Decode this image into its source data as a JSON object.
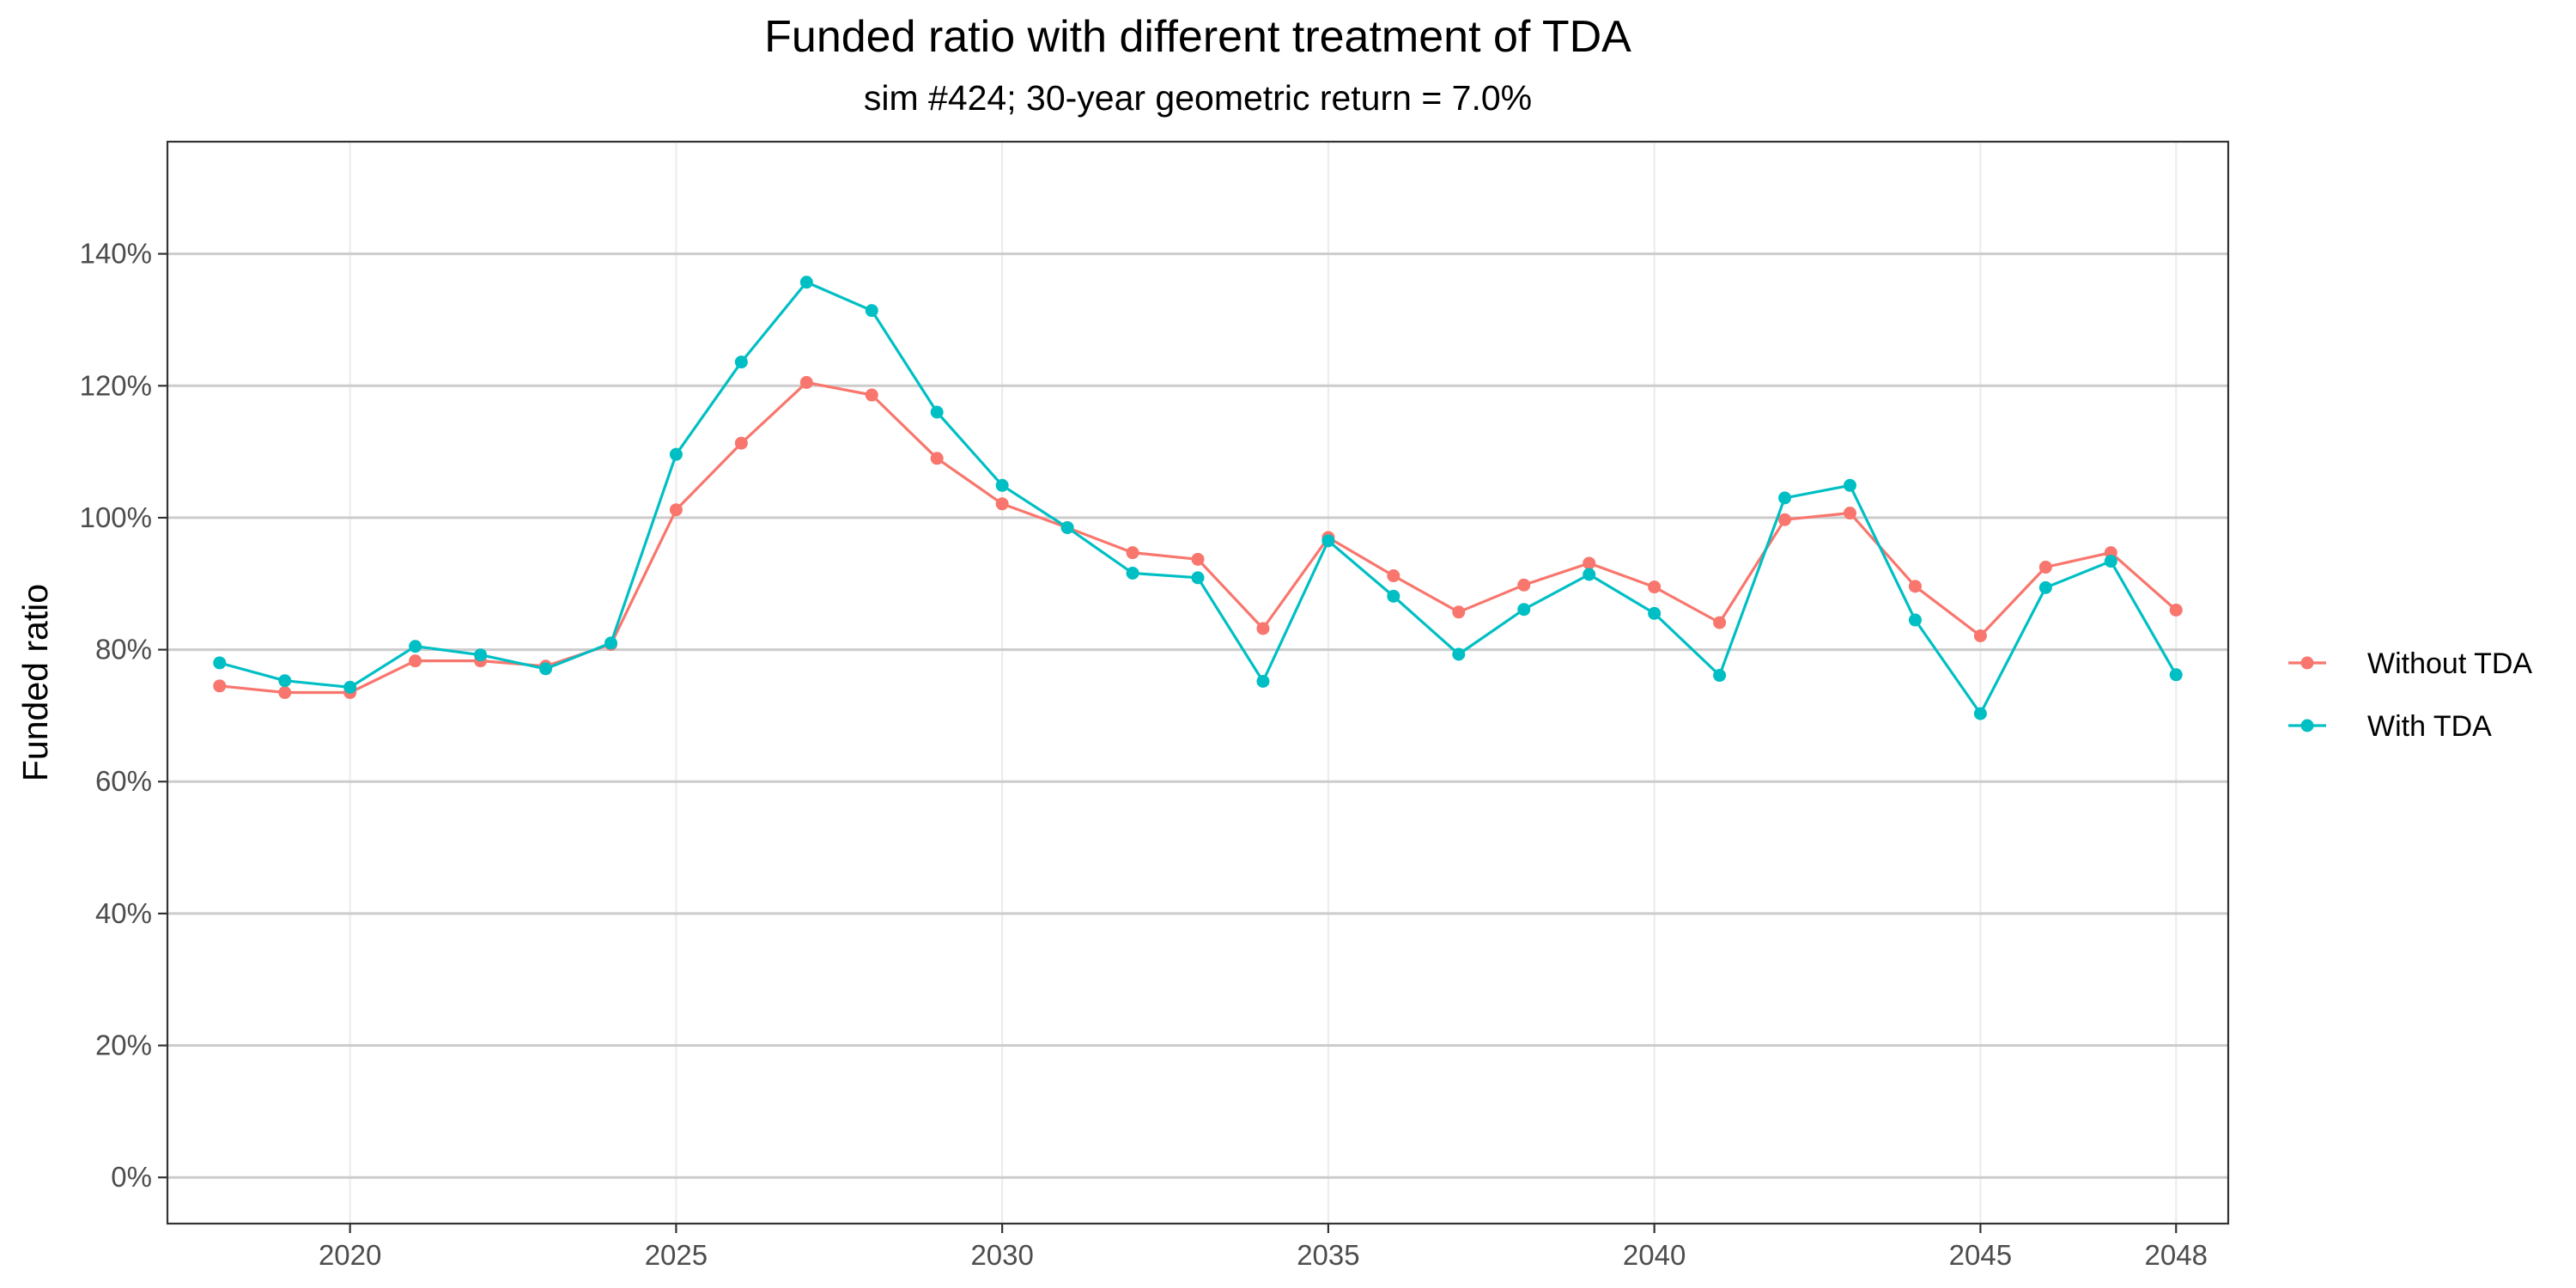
{
  "chart_data": {
    "type": "line",
    "title": "Funded ratio with different treatment of TDA",
    "subtitle": "sim #424; 30-year geometric return = 7.0%",
    "xlabel": "",
    "ylabel": "Funded ratio",
    "x": [
      2018,
      2019,
      2020,
      2021,
      2022,
      2023,
      2024,
      2025,
      2026,
      2027,
      2028,
      2029,
      2030,
      2031,
      2032,
      2033,
      2034,
      2035,
      2036,
      2037,
      2038,
      2039,
      2040,
      2041,
      2042,
      2043,
      2044,
      2045,
      2046,
      2047,
      2048
    ],
    "xlim": [
      2017.2,
      2048.8
    ],
    "ylim": [
      -0.07,
      1.57
    ],
    "x_ticks": [
      {
        "value": 2020,
        "label": "2020"
      },
      {
        "value": 2025,
        "label": "2025"
      },
      {
        "value": 2030,
        "label": "2030"
      },
      {
        "value": 2035,
        "label": "2035"
      },
      {
        "value": 2040,
        "label": "2040"
      },
      {
        "value": 2045,
        "label": "2045"
      },
      {
        "value": 2048,
        "label": "2048"
      }
    ],
    "y_ticks": [
      {
        "value": 0.0,
        "label": "0%"
      },
      {
        "value": 0.2,
        "label": "20%"
      },
      {
        "value": 0.4,
        "label": "40%"
      },
      {
        "value": 0.6,
        "label": "60%"
      },
      {
        "value": 0.8,
        "label": "80%"
      },
      {
        "value": 1.0,
        "label": "100%"
      },
      {
        "value": 1.2,
        "label": "120%"
      },
      {
        "value": 1.4,
        "label": "140%"
      }
    ],
    "grid": true,
    "legend_position": "right",
    "series": [
      {
        "name": "Without TDA",
        "color": "#F8766D",
        "values": [
          0.745,
          0.735,
          0.735,
          0.783,
          0.783,
          0.775,
          0.808,
          1.012,
          1.113,
          1.205,
          1.186,
          1.09,
          1.021,
          0.985,
          0.947,
          0.937,
          0.832,
          0.97,
          0.912,
          0.857,
          0.898,
          0.931,
          0.895,
          0.841,
          0.997,
          1.007,
          0.896,
          0.821,
          0.925,
          0.947,
          0.86
        ]
      },
      {
        "name": "With TDA",
        "color": "#00BFC4",
        "values": [
          0.78,
          0.753,
          0.743,
          0.805,
          0.792,
          0.771,
          0.81,
          1.096,
          1.236,
          1.357,
          1.314,
          1.16,
          1.049,
          0.985,
          0.916,
          0.909,
          0.752,
          0.965,
          0.881,
          0.793,
          0.861,
          0.914,
          0.855,
          0.761,
          1.03,
          1.049,
          0.845,
          0.703,
          0.894,
          0.934,
          0.762
        ]
      }
    ]
  }
}
